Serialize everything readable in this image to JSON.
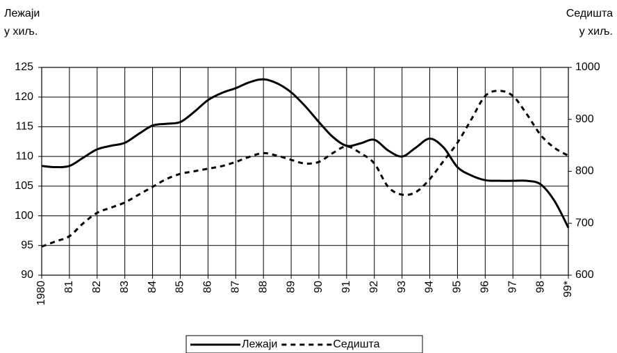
{
  "chart_data": {
    "type": "line",
    "ylabel": [
      "Лежаји",
      "у хиљ."
    ],
    "y2label": [
      "Седишта",
      "у хиљ."
    ],
    "categories": [
      "1980",
      null,
      "81",
      null,
      "82",
      null,
      "83",
      null,
      "84",
      null,
      "85",
      null,
      "86",
      null,
      "87",
      null,
      "88",
      null,
      "89",
      null,
      "90",
      null,
      "91",
      null,
      "92",
      null,
      "93",
      null,
      "94",
      null,
      "95",
      null,
      "96",
      null,
      "97",
      null,
      "98",
      null,
      "99*"
    ],
    "series": [
      {
        "name": "Лежаји",
        "color": "#000000",
        "style": "solid",
        "axis": "y",
        "values": [
          108.4,
          108.2,
          108.4,
          109.8,
          111.2,
          111.8,
          112.3,
          113.8,
          115.2,
          115.5,
          115.8,
          117.5,
          119.5,
          120.7,
          121.5,
          122.5,
          123,
          122.3,
          120.8,
          118.5,
          115.8,
          113.3,
          111.8,
          112.2,
          112.8,
          111,
          110,
          111.5,
          113,
          111.5,
          108.2,
          106.8,
          106,
          105.9,
          105.9,
          105.9,
          105.3,
          102.5,
          98
        ]
      },
      {
        "name": "Седишта",
        "color": "#000000",
        "style": "dashed",
        "axis": "y2",
        "values": [
          655,
          665,
          675,
          700,
          720,
          730,
          740,
          755,
          770,
          785,
          795,
          800,
          805,
          810,
          818,
          828,
          835,
          830,
          822,
          815,
          818,
          835,
          848,
          835,
          815,
          770,
          755,
          760,
          785,
          820,
          855,
          900,
          945,
          955,
          945,
          910,
          870,
          845,
          830
        ]
      }
    ],
    "ylim": [
      90,
      125
    ],
    "yticks": [
      90,
      95,
      100,
      105,
      110,
      115,
      120,
      125
    ],
    "y2lim": [
      600,
      1000
    ],
    "y2ticks": [
      600,
      700,
      800,
      900,
      1000
    ],
    "grid": true,
    "legend": "bottom"
  }
}
